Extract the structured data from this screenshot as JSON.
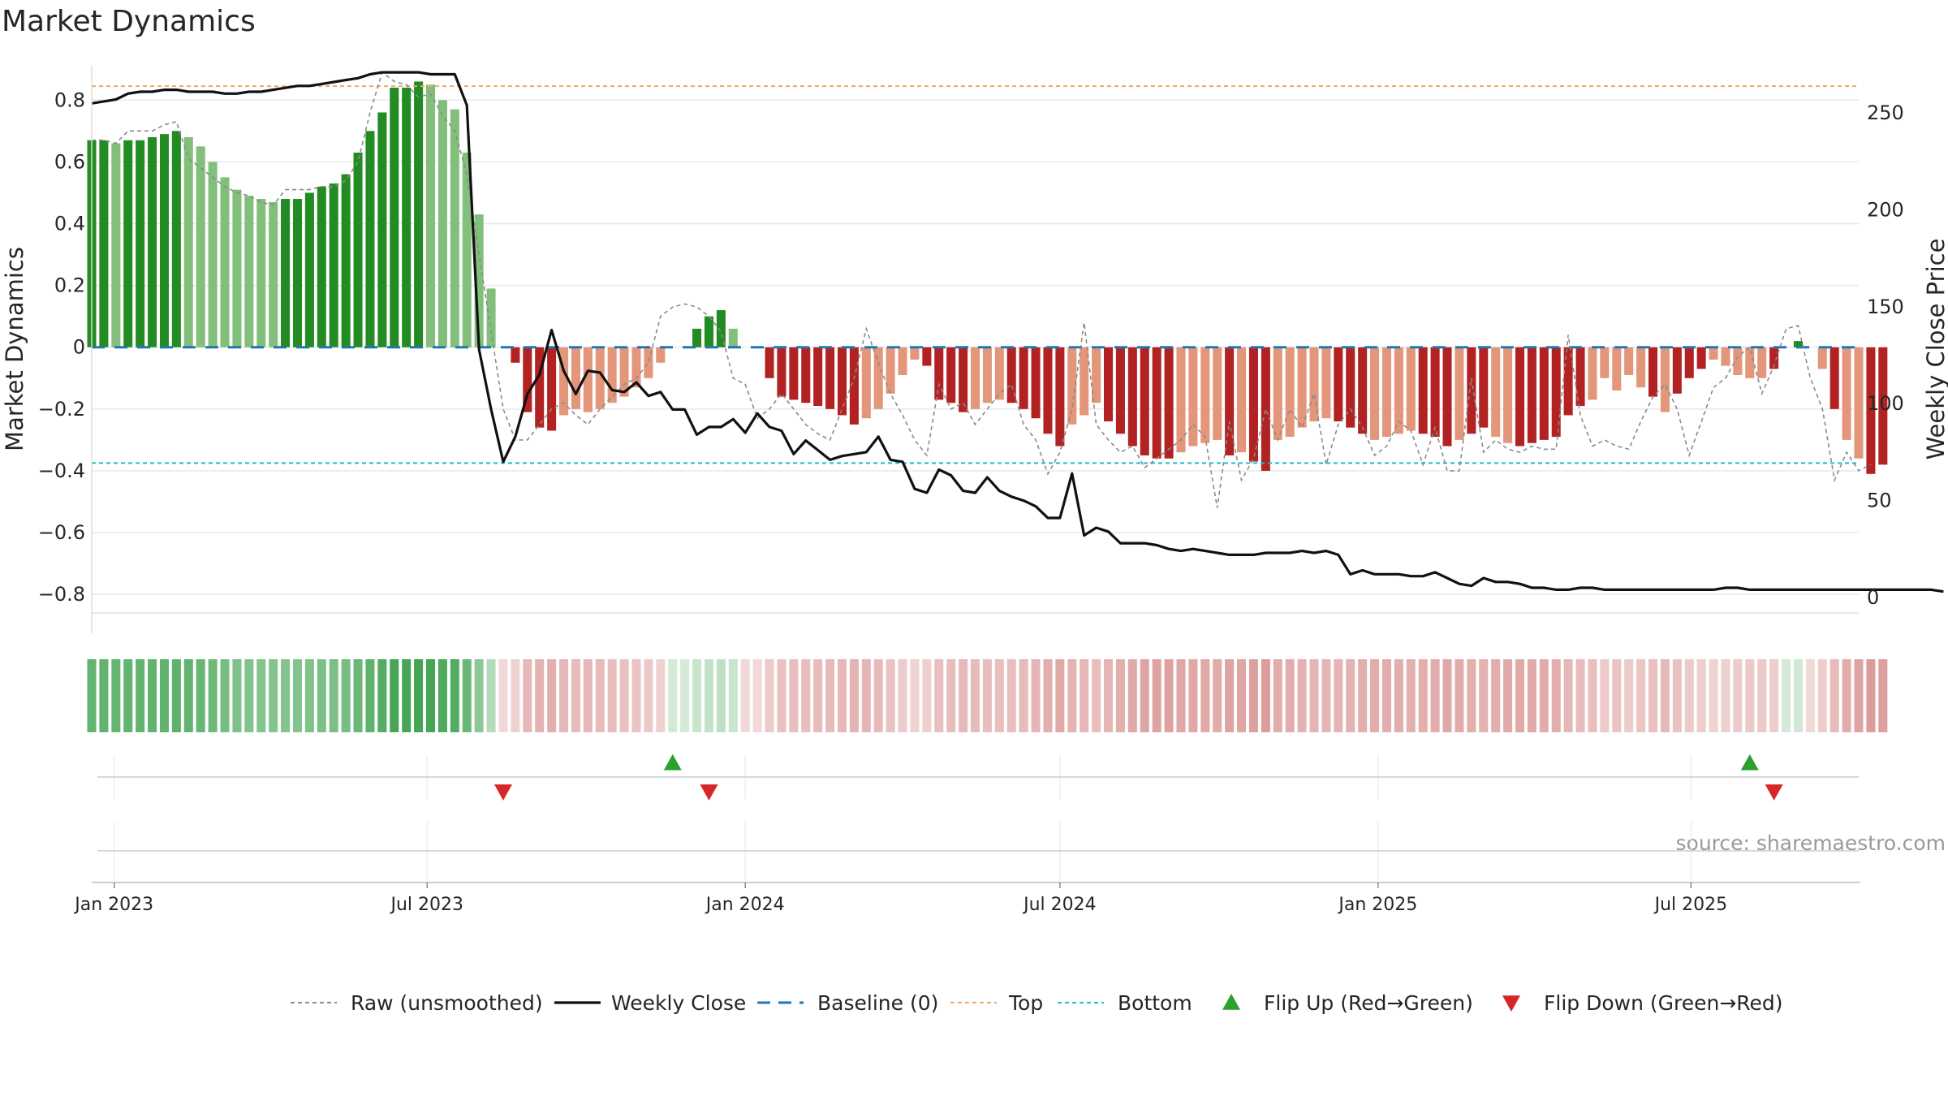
{
  "chart_data": {
    "type": "bar",
    "title": "Market Dynamics",
    "ylabel": "Market Dynamics",
    "y2label": "Weekly Close Price",
    "source": "source: sharemaestro.com",
    "ylim": [
      -0.86,
      0.94
    ],
    "y2lim": [
      -8,
      279
    ],
    "yticks": [
      {
        "v": 0.8,
        "label": "0.8"
      },
      {
        "v": 0.6,
        "label": "0.6"
      },
      {
        "v": 0.4,
        "label": "0.4"
      },
      {
        "v": 0.2,
        "label": "0.2"
      },
      {
        "v": 0,
        "label": "0"
      },
      {
        "v": -0.2,
        "label": "−0.2"
      },
      {
        "v": -0.4,
        "label": "−0.4"
      },
      {
        "v": -0.6,
        "label": "−0.6"
      },
      {
        "v": -0.8,
        "label": "−0.8"
      }
    ],
    "y2ticks": [
      {
        "v": 250,
        "label": "250"
      },
      {
        "v": 200,
        "label": "200"
      },
      {
        "v": 150,
        "label": "150"
      },
      {
        "v": 100,
        "label": "100"
      },
      {
        "v": 50,
        "label": "50"
      },
      {
        "v": 0,
        "label": "0"
      }
    ],
    "x_start": "2022-12-19",
    "x_end": "2025-10-06",
    "xticks": [
      {
        "date": "2023-01-01",
        "label": "Jan 2023"
      },
      {
        "date": "2023-07-01",
        "label": "Jul 2023"
      },
      {
        "date": "2024-01-01",
        "label": "Jan 2024"
      },
      {
        "date": "2024-07-01",
        "label": "Jul 2024"
      },
      {
        "date": "2025-01-01",
        "label": "Jan 2025"
      },
      {
        "date": "2025-07-01",
        "label": "Jul 2025"
      }
    ],
    "first_week": "2022-12-19",
    "week_days": 7,
    "bars": [
      0.67,
      0.67,
      0.66,
      0.67,
      0.67,
      0.68,
      0.69,
      0.7,
      0.68,
      0.65,
      0.6,
      0.55,
      0.51,
      0.49,
      0.48,
      0.47,
      0.48,
      0.48,
      0.5,
      0.52,
      0.53,
      0.56,
      0.63,
      0.7,
      0.76,
      0.84,
      0.84,
      0.86,
      0.85,
      0.8,
      0.77,
      0.63,
      0.43,
      0.19,
      0,
      -0.05,
      -0.21,
      -0.26,
      -0.27,
      -0.22,
      -0.2,
      -0.21,
      -0.2,
      -0.18,
      -0.16,
      -0.13,
      -0.1,
      -0.05,
      0,
      0,
      0.06,
      0.1,
      0.12,
      0.06,
      0,
      0,
      -0.1,
      -0.16,
      -0.17,
      -0.18,
      -0.19,
      -0.2,
      -0.22,
      -0.25,
      -0.23,
      -0.2,
      -0.15,
      -0.09,
      -0.04,
      -0.06,
      -0.17,
      -0.18,
      -0.21,
      -0.2,
      -0.18,
      -0.17,
      -0.18,
      -0.2,
      -0.23,
      -0.28,
      -0.32,
      -0.25,
      -0.22,
      -0.18,
      -0.24,
      -0.28,
      -0.32,
      -0.35,
      -0.36,
      -0.36,
      -0.34,
      -0.32,
      -0.31,
      -0.3,
      -0.35,
      -0.34,
      -0.37,
      -0.4,
      -0.3,
      -0.29,
      -0.26,
      -0.24,
      -0.23,
      -0.24,
      -0.26,
      -0.28,
      -0.3,
      -0.29,
      -0.28,
      -0.27,
      -0.28,
      -0.29,
      -0.32,
      -0.3,
      -0.28,
      -0.26,
      -0.29,
      -0.31,
      -0.32,
      -0.31,
      -0.3,
      -0.29,
      -0.22,
      -0.19,
      -0.17,
      -0.1,
      -0.14,
      -0.09,
      -0.13,
      -0.16,
      -0.21,
      -0.15,
      -0.1,
      -0.07,
      -0.04,
      -0.06,
      -0.09,
      -0.1,
      -0.1,
      -0.07,
      0,
      0.02,
      0,
      -0.07,
      -0.2,
      -0.3,
      -0.36,
      -0.41,
      -0.38
    ],
    "bar_shades": [
      "dark",
      "dark",
      "light",
      "dark",
      "dark",
      "dark",
      "dark",
      "dark",
      "light",
      "light",
      "light",
      "light",
      "light",
      "light",
      "light",
      "light",
      "dark",
      "dark",
      "dark",
      "dark",
      "dark",
      "dark",
      "dark",
      "dark",
      "dark",
      "dark",
      "dark",
      "dark",
      "light",
      "light",
      "light",
      "light",
      "light",
      "light",
      "light",
      "dark",
      "dark",
      "dark",
      "dark",
      "light",
      "light",
      "light",
      "light",
      "light",
      "light",
      "light",
      "light",
      "light",
      "light",
      "light",
      "dark",
      "dark",
      "dark",
      "light",
      "light",
      "light",
      "dark",
      "dark",
      "dark",
      "dark",
      "dark",
      "dark",
      "dark",
      "dark",
      "light",
      "light",
      "light",
      "light",
      "light",
      "dark",
      "dark",
      "dark",
      "dark",
      "light",
      "light",
      "light",
      "dark",
      "dark",
      "dark",
      "dark",
      "dark",
      "light",
      "light",
      "light",
      "dark",
      "dark",
      "dark",
      "dark",
      "dark",
      "dark",
      "light",
      "light",
      "light",
      "light",
      "dark",
      "light",
      "dark",
      "dark",
      "light",
      "light",
      "light",
      "light",
      "light",
      "dark",
      "dark",
      "dark",
      "light",
      "light",
      "light",
      "light",
      "dark",
      "dark",
      "dark",
      "light",
      "dark",
      "dark",
      "light",
      "light",
      "dark",
      "dark",
      "dark",
      "dark",
      "dark",
      "dark",
      "light",
      "light",
      "light",
      "light",
      "light",
      "dark",
      "light",
      "dark",
      "dark",
      "dark",
      "light",
      "light",
      "light",
      "light",
      "light",
      "dark",
      "dark",
      "dark",
      "light",
      "light",
      "dark",
      "light",
      "light",
      "dark",
      "dark",
      "dark",
      "dark",
      "light"
    ],
    "raw": [
      0.67,
      0.67,
      0.66,
      0.7,
      0.7,
      0.7,
      0.72,
      0.73,
      0.61,
      0.58,
      0.55,
      0.52,
      0.5,
      0.49,
      0.47,
      0.46,
      0.51,
      0.51,
      0.51,
      0.52,
      0.52,
      0.54,
      0.6,
      0.76,
      0.89,
      0.86,
      0.85,
      0.81,
      0.82,
      0.75,
      0.7,
      0.56,
      0.3,
      0.05,
      -0.2,
      -0.3,
      -0.3,
      -0.25,
      -0.2,
      -0.18,
      -0.22,
      -0.25,
      -0.2,
      -0.16,
      -0.12,
      -0.1,
      -0.05,
      0.1,
      0.13,
      0.14,
      0.13,
      0.1,
      0.05,
      -0.1,
      -0.12,
      -0.23,
      -0.2,
      -0.15,
      -0.2,
      -0.25,
      -0.28,
      -0.3,
      -0.2,
      -0.1,
      0.06,
      -0.05,
      -0.15,
      -0.22,
      -0.3,
      -0.35,
      -0.12,
      -0.2,
      -0.18,
      -0.25,
      -0.2,
      -0.15,
      -0.12,
      -0.25,
      -0.3,
      -0.41,
      -0.34,
      -0.2,
      0.08,
      -0.25,
      -0.3,
      -0.34,
      -0.32,
      -0.39,
      -0.36,
      -0.33,
      -0.3,
      -0.25,
      -0.29,
      -0.52,
      -0.24,
      -0.43,
      -0.36,
      -0.2,
      -0.3,
      -0.2,
      -0.26,
      -0.15,
      -0.38,
      -0.25,
      -0.2,
      -0.26,
      -0.35,
      -0.32,
      -0.24,
      -0.27,
      -0.38,
      -0.26,
      -0.4,
      -0.4,
      -0.1,
      -0.34,
      -0.3,
      -0.33,
      -0.34,
      -0.32,
      -0.33,
      -0.33,
      0.04,
      -0.22,
      -0.32,
      -0.3,
      -0.32,
      -0.33,
      -0.24,
      -0.16,
      -0.12,
      -0.2,
      -0.35,
      -0.24,
      -0.13,
      -0.1,
      -0.03,
      0,
      -0.15,
      -0.06,
      0.06,
      0.07,
      -0.1,
      -0.2,
      -0.43,
      -0.34,
      -0.4,
      -0.38
    ],
    "close": [
      255,
      256,
      257,
      260,
      261,
      261,
      262,
      262,
      261,
      261,
      261,
      260,
      260,
      261,
      261,
      262,
      263,
      264,
      264,
      265,
      266,
      267,
      268,
      270,
      271,
      271,
      271,
      271,
      270,
      270,
      270,
      254,
      128,
      97,
      70,
      83,
      105,
      115,
      138,
      117,
      105,
      117,
      116,
      107,
      106,
      111,
      104,
      106,
      97,
      97,
      84,
      88,
      88,
      92,
      85,
      95,
      88,
      86,
      74,
      81,
      76,
      71,
      73,
      74,
      75,
      83,
      71,
      70,
      56,
      54,
      66,
      63,
      55,
      54,
      62,
      55,
      52,
      50,
      47,
      41,
      41,
      64,
      32,
      36,
      34,
      28,
      28,
      28,
      27,
      25,
      24,
      25,
      24,
      23,
      22,
      22,
      22,
      23,
      23,
      23,
      24,
      23,
      24,
      22,
      12,
      14,
      12,
      12,
      12,
      11,
      11,
      13,
      10,
      7,
      6,
      10,
      8,
      8,
      7,
      5,
      5,
      4,
      4,
      5,
      5,
      4,
      4,
      4,
      4,
      4,
      4,
      4,
      4,
      4,
      4,
      5,
      5,
      4,
      4,
      4,
      4,
      4,
      4,
      4,
      4,
      4,
      4,
      4,
      4,
      4,
      4,
      4,
      4,
      3
    ],
    "top_line": 0.845,
    "bottom_line": -0.375,
    "baseline": 0,
    "flip_up": [
      "2023-11-20",
      "2025-08-04"
    ],
    "flip_down": [
      "2023-08-14",
      "2023-12-11",
      "2025-08-18"
    ],
    "legend": [
      "Raw (unsmoothed)",
      "Weekly Close",
      "Baseline (0)",
      "Top",
      "Bottom",
      "Flip Up (Red→Green)",
      "Flip Down (Green→Red)"
    ],
    "legend_position": "bottom-center",
    "colors": {
      "green_dark": "#228b22",
      "green_light": "#82bf7a",
      "red_dark": "#b22222",
      "red_light": "#e3967a",
      "raw": "#8a8a8a",
      "close": "#111111",
      "baseline": "#1f77b4",
      "top": "#f0a868",
      "bottom": "#17becf",
      "flip_up": "#2ca02c",
      "flip_down": "#d62728",
      "grid": "#e8e8e8"
    }
  }
}
